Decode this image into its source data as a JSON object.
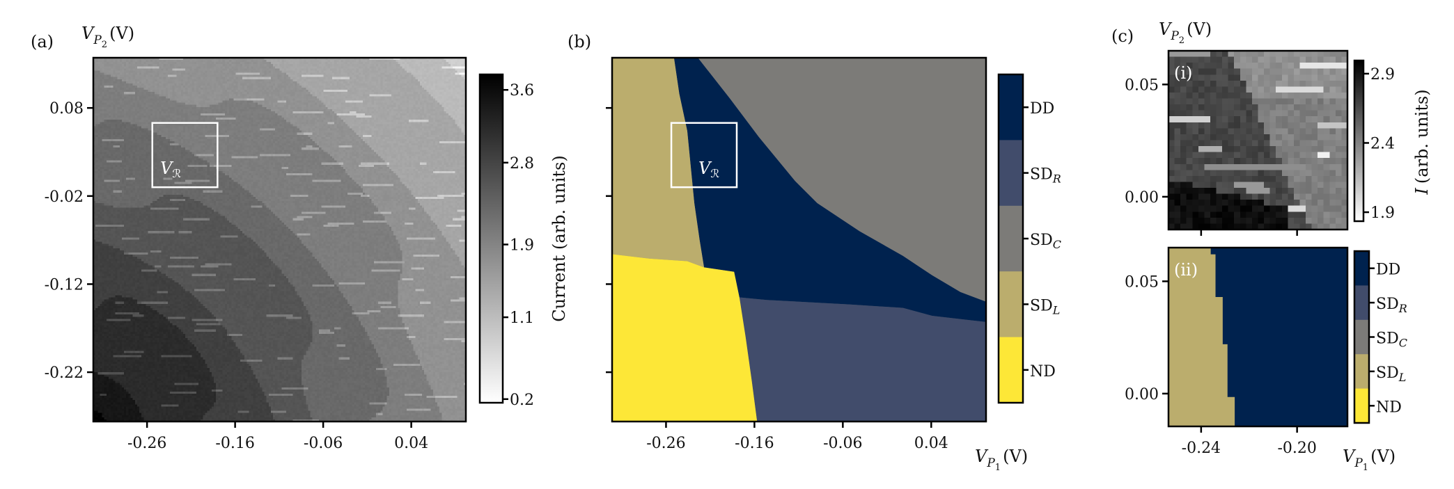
{
  "labels": {
    "vp2": {
      "var": "V",
      "sub": "P",
      "subsub": "2",
      "unit": "(V)"
    },
    "vp1": {
      "var": "V",
      "sub": "P",
      "subsub": "1",
      "unit": "(V)"
    },
    "current": "Current (arb. units)",
    "i_var": "I",
    "i_unit": "(arb. units)",
    "vr": {
      "main": "V",
      "sub": "ℛ"
    }
  },
  "panels": {
    "a": "(a)",
    "b": "(b)",
    "c": "(c)",
    "ci": "(i)",
    "cii": "(ii)"
  },
  "chart_data": [
    {
      "type": "heatmap",
      "panel": "(a)",
      "x_ticks": [
        -0.26,
        -0.16,
        -0.06,
        0.04
      ],
      "x_tick_labels": [
        "-0.26",
        "-0.16",
        "-0.06",
        "0.04"
      ],
      "y_ticks": [
        0.08,
        -0.02,
        -0.12,
        -0.22
      ],
      "y_tick_labels": [
        "0.08",
        "-0.02",
        "-0.12",
        "-0.22"
      ],
      "xlim": [
        -0.321,
        0.102
      ],
      "ylim": [
        -0.276,
        0.137
      ],
      "colormap": "Greys",
      "clim": [
        0.16,
        3.77
      ],
      "colorbar_ticks": [
        3.6,
        2.8,
        1.9,
        1.1,
        0.2
      ],
      "colorbar_tick_labels": [
        "3.6",
        "2.8",
        "1.9",
        "1.1",
        "0.2"
      ],
      "trend": "current highest bottom-left, decreasing in stepped arcs toward top-right",
      "annotation_box": {
        "x": [
          -0.254,
          -0.18
        ],
        "y": [
          -0.01,
          0.063
        ]
      }
    },
    {
      "type": "heatmap",
      "panel": "(b)",
      "x_ticks": [
        -0.26,
        -0.16,
        -0.06,
        0.04
      ],
      "x_tick_labels": [
        "-0.26",
        "-0.16",
        "-0.06",
        "0.04"
      ],
      "y_ticks": [
        0.08,
        -0.02,
        -0.12,
        -0.22
      ],
      "xlim": [
        -0.321,
        0.102
      ],
      "ylim": [
        -0.276,
        0.137
      ],
      "categories": [
        {
          "main": "DD",
          "sub": ""
        },
        {
          "main": "SD",
          "sub": "R"
        },
        {
          "main": "SD",
          "sub": "C"
        },
        {
          "main": "SD",
          "sub": "L"
        },
        {
          "main": "ND",
          "sub": ""
        }
      ],
      "colors": {
        "DD": "#00224e",
        "SD_R": "#414c6b",
        "SD_C": "#7c7b78",
        "SD_L": "#bbad6d",
        "ND": "#fde737"
      },
      "background_region": "SD_C",
      "regions": {
        "SD_L": [
          [
            -0.321,
            0.137
          ],
          [
            -0.251,
            0.137
          ],
          [
            -0.245,
            0.096
          ],
          [
            -0.236,
            0.054
          ],
          [
            -0.232,
            0.013
          ],
          [
            -0.228,
            -0.028
          ],
          [
            -0.222,
            -0.07
          ],
          [
            -0.217,
            -0.101
          ],
          [
            -0.236,
            -0.094
          ],
          [
            -0.279,
            -0.091
          ],
          [
            -0.321,
            -0.086
          ]
        ],
        "DD": [
          [
            -0.251,
            0.137
          ],
          [
            -0.245,
            0.096
          ],
          [
            -0.236,
            0.054
          ],
          [
            -0.232,
            0.013
          ],
          [
            -0.228,
            -0.028
          ],
          [
            -0.222,
            -0.07
          ],
          [
            -0.217,
            -0.101
          ],
          [
            -0.183,
            -0.106
          ],
          [
            -0.177,
            -0.135
          ],
          [
            -0.146,
            -0.138
          ],
          [
            -0.053,
            -0.143
          ],
          [
            0.008,
            -0.147
          ],
          [
            0.041,
            -0.156
          ],
          [
            0.102,
            -0.163
          ],
          [
            0.102,
            -0.14
          ],
          [
            0.073,
            -0.129
          ],
          [
            0.041,
            -0.11
          ],
          [
            0.008,
            -0.088
          ],
          [
            -0.041,
            -0.06
          ],
          [
            -0.089,
            -0.028
          ],
          [
            -0.114,
            -0.003
          ],
          [
            -0.155,
            0.047
          ],
          [
            -0.188,
            0.091
          ],
          [
            -0.224,
            0.137
          ]
        ],
        "SD_R": [
          [
            -0.177,
            -0.135
          ],
          [
            -0.146,
            -0.138
          ],
          [
            -0.053,
            -0.143
          ],
          [
            0.008,
            -0.147
          ],
          [
            0.041,
            -0.156
          ],
          [
            0.102,
            -0.163
          ],
          [
            0.102,
            -0.276
          ],
          [
            -0.157,
            -0.276
          ],
          [
            -0.163,
            -0.23
          ],
          [
            -0.17,
            -0.18
          ]
        ],
        "ND": [
          [
            -0.321,
            -0.086
          ],
          [
            -0.279,
            -0.091
          ],
          [
            -0.236,
            -0.094
          ],
          [
            -0.217,
            -0.101
          ],
          [
            -0.183,
            -0.106
          ],
          [
            -0.177,
            -0.135
          ],
          [
            -0.17,
            -0.18
          ],
          [
            -0.163,
            -0.23
          ],
          [
            -0.157,
            -0.276
          ],
          [
            -0.321,
            -0.276
          ]
        ]
      },
      "annotation_box": {
        "x": [
          -0.254,
          -0.18
        ],
        "y": [
          -0.01,
          0.063
        ]
      }
    },
    {
      "type": "heatmap",
      "panel": "(c)(i)",
      "x_ticks": [
        -0.24,
        -0.2
      ],
      "y_ticks": [
        0.05,
        0.0
      ],
      "y_tick_labels": [
        "0.05",
        "0.00"
      ],
      "xlim": [
        -0.2536,
        -0.179
      ],
      "ylim": [
        -0.0146,
        0.065
      ],
      "colormap": "Greys",
      "clim": [
        1.835,
        2.995
      ],
      "colorbar_ticks": [
        2.9,
        2.4,
        1.9
      ],
      "colorbar_tick_labels": [
        "2.9",
        "2.4",
        "1.9"
      ]
    },
    {
      "type": "heatmap",
      "panel": "(c)(ii)",
      "x_ticks": [
        -0.24,
        -0.2
      ],
      "x_tick_labels": [
        "-0.24",
        "-0.20"
      ],
      "y_ticks": [
        0.05,
        0.0
      ],
      "y_tick_labels": [
        "0.05",
        "0.00"
      ],
      "xlim": [
        -0.2536,
        -0.179
      ],
      "ylim": [
        -0.0146,
        0.065
      ],
      "background_region": "DD",
      "regions": {
        "SD_L": [
          [
            -0.2536,
            0.065
          ],
          [
            -0.236,
            0.065
          ],
          [
            -0.236,
            0.062
          ],
          [
            -0.234,
            0.062
          ],
          [
            -0.234,
            0.043
          ],
          [
            -0.231,
            0.043
          ],
          [
            -0.231,
            0.022
          ],
          [
            -0.229,
            0.022
          ],
          [
            -0.229,
            -0.0015
          ],
          [
            -0.226,
            -0.0015
          ],
          [
            -0.226,
            -0.0146
          ],
          [
            -0.2536,
            -0.0146
          ]
        ]
      }
    }
  ]
}
